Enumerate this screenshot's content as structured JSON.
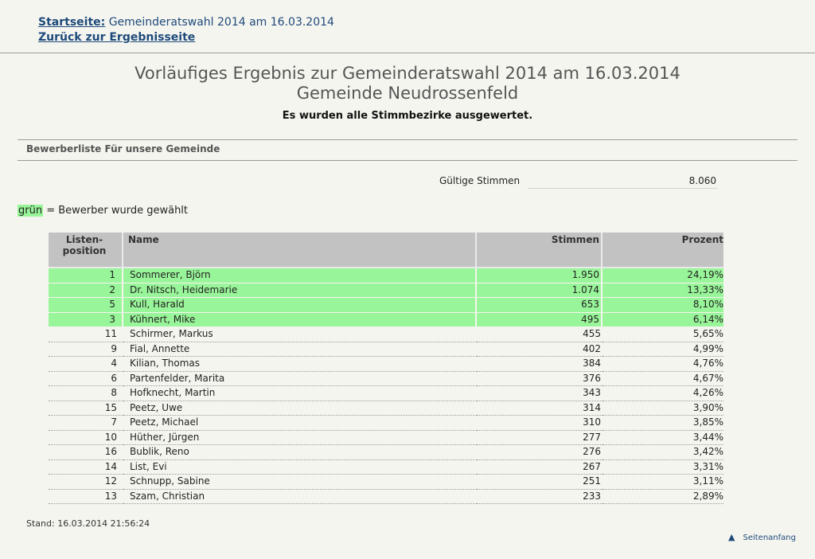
{
  "header": {
    "crumb_link": "Startseite:",
    "crumb_text": "Gemeinderatswahl 2014 am 16.03.2014",
    "back_link": "Zurück zur Ergebnisseite"
  },
  "title_line1": "Vorläufiges Ergebnis zur Gemeinderatswahl 2014 am 16.03.2014",
  "title_line2": "Gemeinde Neudrossenfeld",
  "subtitle": "Es wurden alle Stimmbezirke ausgewertet.",
  "section_title": "Bewerberliste Für unsere Gemeinde",
  "valid_votes": {
    "label": "Gültige Stimmen",
    "value": "8.060"
  },
  "legend": {
    "marker": "grün",
    "text": " = Bewerber wurde gewählt",
    "color": "#99f599"
  },
  "table": {
    "headers": {
      "pos_line1": "Listen-",
      "pos_line2": "position",
      "name": "Name",
      "votes": "Stimmen",
      "pct": "Prozent"
    },
    "rows": [
      {
        "pos": "1",
        "name": "Sommerer, Björn",
        "votes": "1.950",
        "pct": "24,19%",
        "elected": true
      },
      {
        "pos": "2",
        "name": "Dr. Nitsch, Heidemarie",
        "votes": "1.074",
        "pct": "13,33%",
        "elected": true
      },
      {
        "pos": "5",
        "name": "Kull, Harald",
        "votes": "653",
        "pct": "8,10%",
        "elected": true
      },
      {
        "pos": "3",
        "name": "Kühnert, Mike",
        "votes": "495",
        "pct": "6,14%",
        "elected": true
      },
      {
        "pos": "11",
        "name": "Schirmer, Markus",
        "votes": "455",
        "pct": "5,65%",
        "elected": false
      },
      {
        "pos": "9",
        "name": "Fial, Annette",
        "votes": "402",
        "pct": "4,99%",
        "elected": false
      },
      {
        "pos": "4",
        "name": "Kilian, Thomas",
        "votes": "384",
        "pct": "4,76%",
        "elected": false
      },
      {
        "pos": "6",
        "name": "Partenfelder, Marita",
        "votes": "376",
        "pct": "4,67%",
        "elected": false
      },
      {
        "pos": "8",
        "name": "Hofknecht, Martin",
        "votes": "343",
        "pct": "4,26%",
        "elected": false
      },
      {
        "pos": "15",
        "name": "Peetz, Uwe",
        "votes": "314",
        "pct": "3,90%",
        "elected": false
      },
      {
        "pos": "7",
        "name": "Peetz, Michael",
        "votes": "310",
        "pct": "3,85%",
        "elected": false
      },
      {
        "pos": "10",
        "name": "Hüther, Jürgen",
        "votes": "277",
        "pct": "3,44%",
        "elected": false
      },
      {
        "pos": "16",
        "name": "Bublik, Reno",
        "votes": "276",
        "pct": "3,42%",
        "elected": false
      },
      {
        "pos": "14",
        "name": "List, Evi",
        "votes": "267",
        "pct": "3,31%",
        "elected": false
      },
      {
        "pos": "12",
        "name": "Schnupp, Sabine",
        "votes": "251",
        "pct": "3,11%",
        "elected": false
      },
      {
        "pos": "13",
        "name": "Szam, Christian",
        "votes": "233",
        "pct": "2,89%",
        "elected": false
      }
    ]
  },
  "footer": {
    "stand": "Stand: 16.03.2014 21:56:24",
    "top_link": "Seitenanfang",
    "top_icon": "arrow-up-icon"
  }
}
